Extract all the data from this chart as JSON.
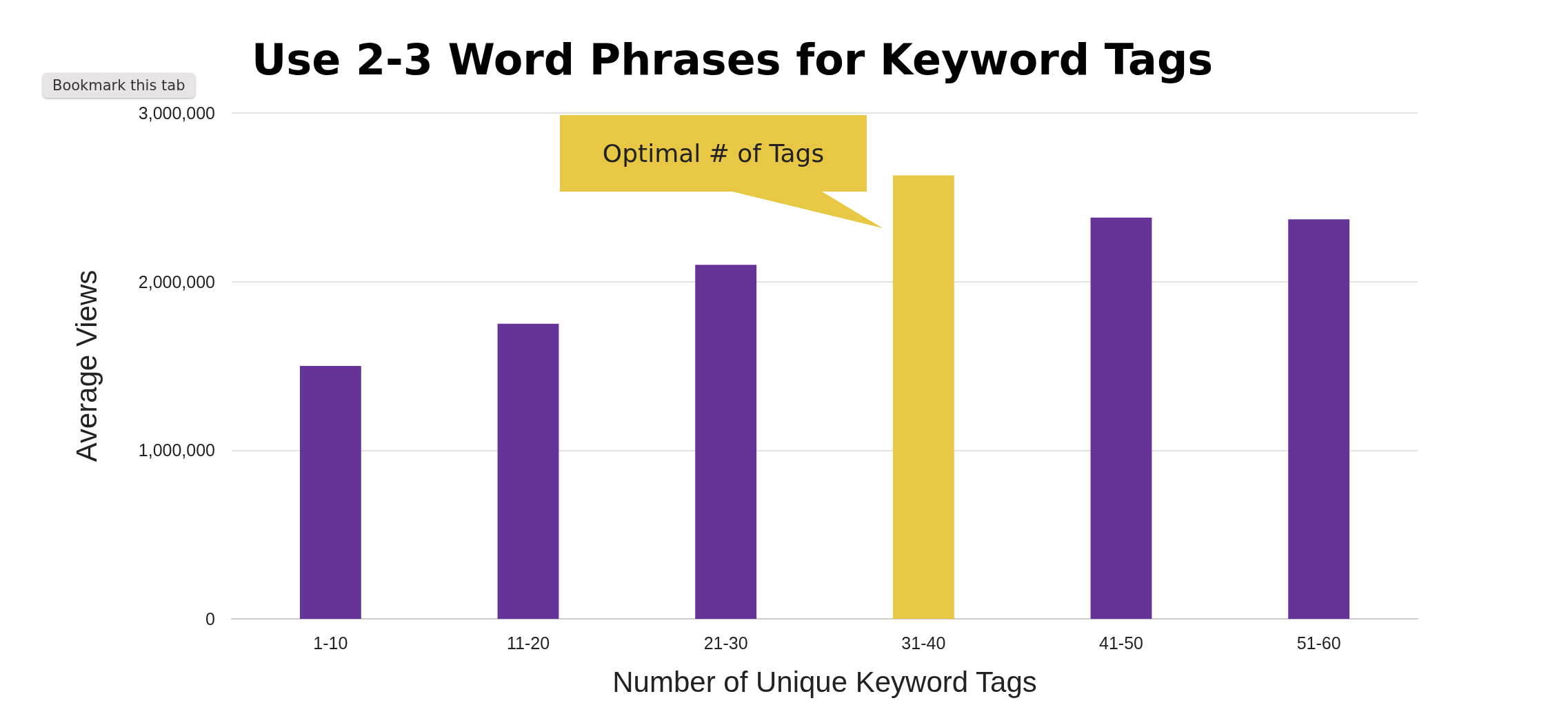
{
  "chart_data": {
    "type": "bar",
    "title": "Use 2-3 Word Phrases for Keyword Tags",
    "xlabel": "Number of Unique Keyword Tags",
    "ylabel": "Average Views",
    "categories": [
      "1-10",
      "11-20",
      "21-30",
      "31-40",
      "41-50",
      "51-60"
    ],
    "values": [
      1500000,
      1750000,
      2100000,
      2630000,
      2380000,
      2370000
    ],
    "colors": [
      "#663399",
      "#663399",
      "#663399",
      "#e8c744",
      "#663399",
      "#663399"
    ],
    "ylim": [
      0,
      3000000
    ],
    "yticks": [
      {
        "value": 0,
        "label": "0"
      },
      {
        "value": 1000000,
        "label": "1,000,000"
      },
      {
        "value": 2000000,
        "label": "2,000,000"
      },
      {
        "value": 3000000,
        "label": "3,000,000"
      }
    ],
    "grid": "y",
    "annotations": [
      "Optimal # of Tags",
      "Bookmark this tab"
    ]
  }
}
